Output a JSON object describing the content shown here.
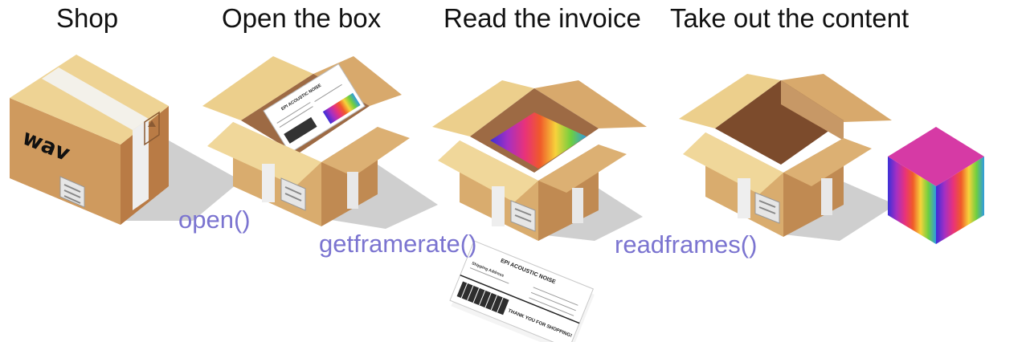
{
  "steps": [
    {
      "title": "Shop",
      "box_label": "wav"
    },
    {
      "title": "Open the box",
      "function": "open()"
    },
    {
      "title": "Read the invoice",
      "function": "getframerate()"
    },
    {
      "title": "Take out the content",
      "function": "readframes()"
    }
  ],
  "invoice": {
    "company": "EPI ACOUSTIC NOISE",
    "recipient_line": "Shipping Address",
    "footer": "THANK YOU FOR SHOPPING!"
  },
  "colors": {
    "function_text": "#7b74d0",
    "cardboard_light": "#f0d79a",
    "cardboard_mid": "#d9aa6c",
    "cardboard_dark": "#b77a49",
    "shadow": "#cfcfcf"
  }
}
